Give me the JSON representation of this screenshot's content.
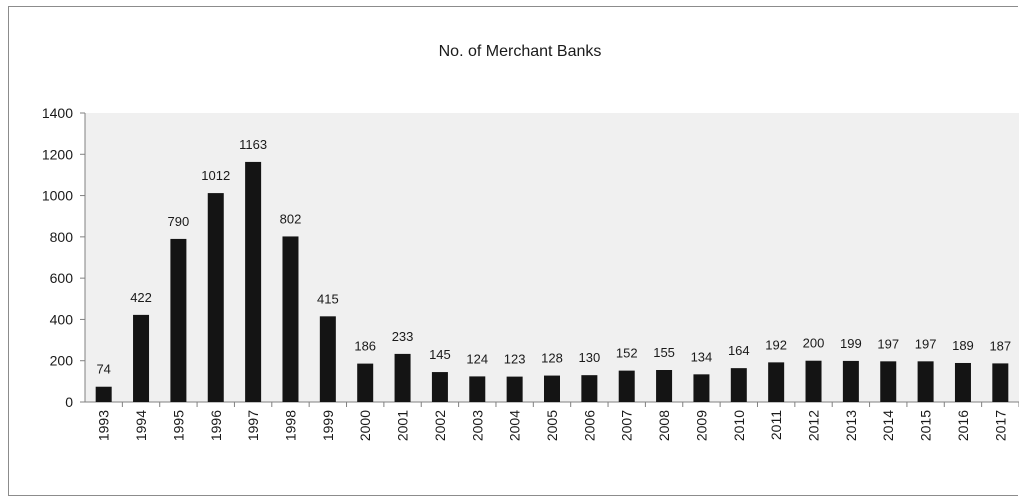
{
  "chart_data": {
    "type": "bar",
    "title": "No. of Merchant Banks",
    "xlabel": "",
    "ylabel": "",
    "categories": [
      "1993",
      "1994",
      "1995",
      "1996",
      "1997",
      "1998",
      "1999",
      "2000",
      "2001",
      "2002",
      "2003",
      "2004",
      "2005",
      "2006",
      "2007",
      "2008",
      "2009",
      "2010",
      "2011",
      "2012",
      "2013",
      "2014",
      "2015",
      "2016",
      "2017"
    ],
    "values": [
      74,
      422,
      790,
      1012,
      1163,
      802,
      415,
      186,
      233,
      145,
      124,
      123,
      128,
      130,
      152,
      155,
      134,
      164,
      192,
      200,
      199,
      197,
      197,
      189,
      187
    ],
    "data_labels": [
      "74",
      "422",
      "790",
      "1012",
      "1163",
      "802",
      "415",
      "186",
      "233",
      "145",
      "124",
      "123",
      "128",
      "130",
      "152",
      "155",
      "134",
      "164",
      "192",
      "200",
      "199",
      "197",
      "197",
      "189",
      "187"
    ],
    "ylim": [
      0,
      1400
    ],
    "yticks": [
      "0",
      "200",
      "400",
      "600",
      "800",
      "1000",
      "1200",
      "1400"
    ],
    "ytick_values": [
      0,
      200,
      400,
      600,
      800,
      1000,
      1200,
      1400
    ],
    "grid": false,
    "legend": "none",
    "colors": {
      "bar": "#141414",
      "plot_area": "#f0f0f0",
      "axis": "#808080",
      "text": "#1a1a1a"
    }
  }
}
